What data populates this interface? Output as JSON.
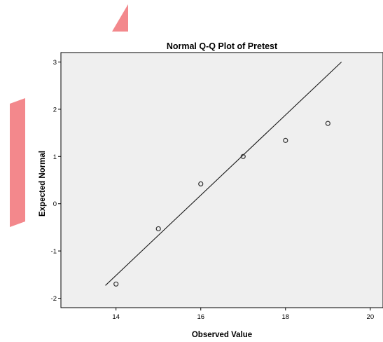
{
  "colors": {
    "plot_background": "#efefef",
    "page_background": "#ffffff",
    "decoration": "#f3888c",
    "marker_stroke": "#333333",
    "line": "#1a1a1a"
  },
  "chart_data": {
    "type": "scatter",
    "title": "Normal Q-Q Plot of Pretest",
    "xlabel": "Observed Value",
    "ylabel": "Expected Normal",
    "xlim": [
      12.7,
      20.3
    ],
    "ylim": [
      -2.2,
      3.2
    ],
    "x_ticks": [
      14,
      16,
      18,
      20
    ],
    "y_ticks": [
      -2,
      -1,
      0,
      1,
      2,
      3
    ],
    "x_tick_labels": [
      "14",
      "16",
      "18",
      "20"
    ],
    "y_tick_labels": [
      "-2",
      "-1",
      "0",
      "1",
      "2",
      "3"
    ],
    "grid": false,
    "legend": "none",
    "marker": "open-circle",
    "points": [
      {
        "x": 14,
        "y": -1.7
      },
      {
        "x": 15,
        "y": -0.53
      },
      {
        "x": 16,
        "y": 0.42
      },
      {
        "x": 17,
        "y": 1.0
      },
      {
        "x": 18,
        "y": 1.34
      },
      {
        "x": 19,
        "y": 1.7
      }
    ],
    "reference_line": {
      "x": [
        13.75,
        19.32
      ],
      "y": [
        -1.73,
        3.0
      ]
    }
  }
}
